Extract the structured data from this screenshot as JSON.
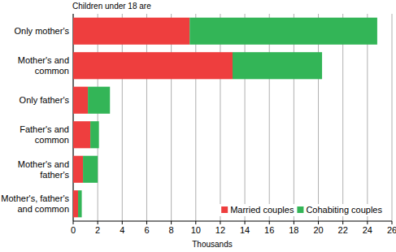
{
  "chart_data": {
    "type": "bar",
    "orientation": "horizontal",
    "stacked": true,
    "title": "Children under 18 are",
    "x_label": "Thousands",
    "categories": [
      "Only mother's",
      "Mother's and common",
      "Only father's",
      "Father's and common",
      "Mother's and father's",
      "Mother's, father's and common"
    ],
    "series": [
      {
        "name": "Married couples",
        "color": "#ee3e3e",
        "values": [
          9.5,
          13.0,
          1.2,
          1.4,
          0.8,
          0.4
        ]
      },
      {
        "name": "Cohabiting couples",
        "color": "#33b557",
        "values": [
          15.3,
          7.3,
          1.8,
          0.7,
          1.2,
          0.3
        ]
      }
    ],
    "xlim": [
      0,
      26
    ],
    "xticks": [
      0,
      2,
      4,
      6,
      8,
      10,
      12,
      14,
      16,
      18,
      20,
      22,
      24,
      26
    ],
    "grid": true,
    "legend": "lower right"
  }
}
